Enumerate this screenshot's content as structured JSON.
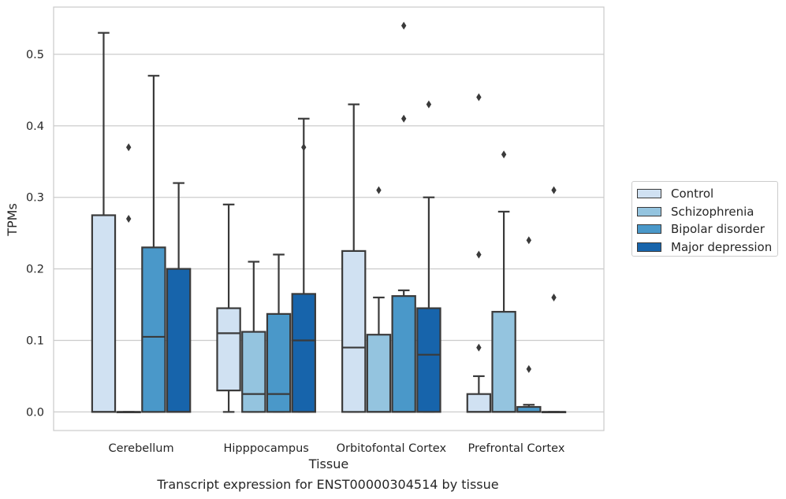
{
  "chart_data": {
    "type": "box",
    "title": "",
    "xlabel": "Tissue",
    "ylabel": "TPMs",
    "caption": "Transcript expression for ENST00000304514 by tissue",
    "ylim": [
      -0.026,
      0.566
    ],
    "yticks": [
      0.0,
      0.1,
      0.2,
      0.3,
      0.4,
      0.5
    ],
    "ytick_labels": [
      "0.0",
      "0.1",
      "0.2",
      "0.3",
      "0.4",
      "0.5"
    ],
    "grid": "horizontal",
    "legend_position": "right",
    "categories": [
      "Cerebellum",
      "Hipppocampus",
      "Orbitofontal Cortex",
      "Prefrontal Cortex"
    ],
    "series": [
      {
        "name": "Control",
        "color": "#d0e1f2",
        "boxes": [
          {
            "whislo": 0,
            "q1": 0,
            "med": 0,
            "q3": 0.275,
            "whishi": 0.53,
            "fliers": []
          },
          {
            "whislo": 0,
            "q1": 0.03,
            "med": 0.11,
            "q3": 0.145,
            "whishi": 0.29,
            "fliers": []
          },
          {
            "whislo": 0,
            "q1": 0,
            "med": 0.09,
            "q3": 0.225,
            "whishi": 0.43,
            "fliers": []
          },
          {
            "whislo": 0,
            "q1": 0,
            "med": 0,
            "q3": 0.025,
            "whishi": 0.05,
            "fliers": [
              0.09,
              0.22,
              0.44
            ]
          }
        ]
      },
      {
        "name": "Schizophrenia",
        "color": "#94c4df",
        "boxes": [
          {
            "whislo": 0,
            "q1": 0,
            "med": 0,
            "q3": 0,
            "whishi": 0,
            "fliers": [
              0.27,
              0.37
            ]
          },
          {
            "whislo": 0,
            "q1": 0,
            "med": 0.025,
            "q3": 0.112,
            "whishi": 0.21,
            "fliers": []
          },
          {
            "whislo": 0,
            "q1": 0,
            "med": 0,
            "q3": 0.108,
            "whishi": 0.16,
            "fliers": [
              0.31
            ]
          },
          {
            "whislo": 0,
            "q1": 0,
            "med": 0,
            "q3": 0.14,
            "whishi": 0.28,
            "fliers": [
              0.36
            ]
          }
        ]
      },
      {
        "name": "Bipolar disorder",
        "color": "#4a98c9",
        "boxes": [
          {
            "whislo": 0,
            "q1": 0,
            "med": 0.105,
            "q3": 0.23,
            "whishi": 0.47,
            "fliers": []
          },
          {
            "whislo": 0,
            "q1": 0,
            "med": 0.025,
            "q3": 0.137,
            "whishi": 0.22,
            "fliers": []
          },
          {
            "whislo": 0,
            "q1": 0,
            "med": 0,
            "q3": 0.162,
            "whishi": 0.17,
            "fliers": [
              0.41,
              0.54
            ]
          },
          {
            "whislo": 0,
            "q1": 0,
            "med": 0,
            "q3": 0.007,
            "whishi": 0.01,
            "fliers": [
              0.06,
              0.24
            ]
          }
        ]
      },
      {
        "name": "Major depression",
        "color": "#1764ab",
        "boxes": [
          {
            "whislo": 0,
            "q1": 0,
            "med": 0,
            "q3": 0.2,
            "whishi": 0.32,
            "fliers": []
          },
          {
            "whislo": 0,
            "q1": 0,
            "med": 0.1,
            "q3": 0.165,
            "whishi": 0.41,
            "fliers": [
              0.37
            ]
          },
          {
            "whislo": 0,
            "q1": 0,
            "med": 0.08,
            "q3": 0.145,
            "whishi": 0.3,
            "fliers": [
              0.43
            ]
          },
          {
            "whislo": 0,
            "q1": 0,
            "med": 0,
            "q3": 0,
            "whishi": 0,
            "fliers": [
              0.16,
              0.31
            ]
          }
        ]
      }
    ]
  }
}
